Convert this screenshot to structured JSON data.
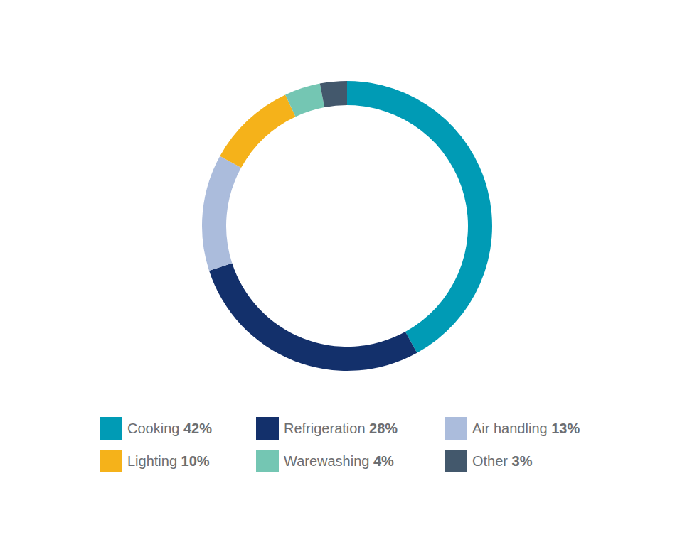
{
  "chart_data": {
    "type": "pie",
    "categories": [
      "Cooking",
      "Refrigeration",
      "Air handling",
      "Lighting",
      "Warewashing",
      "Other"
    ],
    "values": [
      42,
      28,
      13,
      10,
      4,
      3
    ],
    "value_labels": [
      "42%",
      "28%",
      "13%",
      "10%",
      "4%",
      "3%"
    ],
    "colors": [
      "#009bb5",
      "#13306b",
      "#abbcdc",
      "#f5b21a",
      "#74c6b3",
      "#43586c"
    ],
    "legend": "bottom"
  }
}
